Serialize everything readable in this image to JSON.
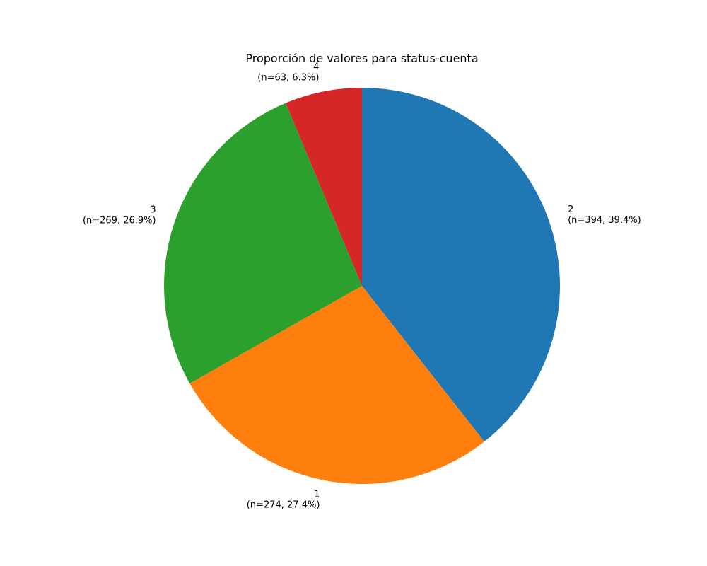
{
  "chart_data": {
    "type": "pie",
    "title": "Proporción de valores para status-cuenta",
    "start_angle_deg": 90,
    "direction": "clockwise",
    "slices": [
      {
        "label": "2",
        "value": 394,
        "detail": "(n=394, 39.4%)",
        "color": "#1f77b4"
      },
      {
        "label": "1",
        "value": 274,
        "detail": "(n=274, 27.4%)",
        "color": "#ff7f0e"
      },
      {
        "label": "3",
        "value": 269,
        "detail": "(n=269, 26.9%)",
        "color": "#2ca02c"
      },
      {
        "label": "4",
        "value": 63,
        "detail": "(n=63, 6.3%)",
        "color": "#d62728"
      }
    ]
  }
}
